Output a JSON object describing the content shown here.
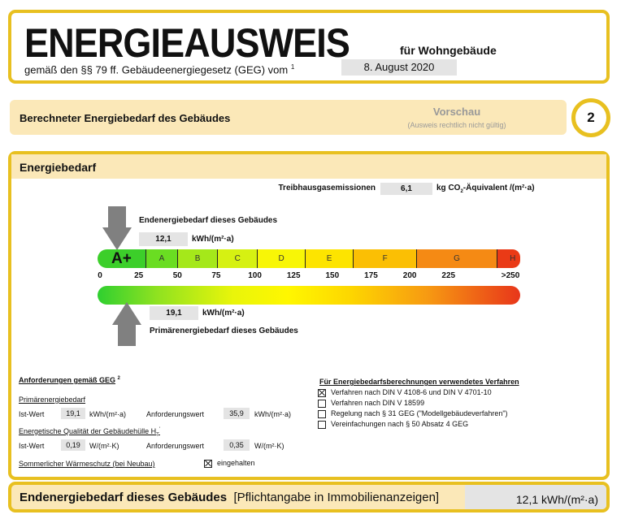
{
  "header": {
    "title": "ENERGIEAUSWEIS",
    "subtitle": "für Wohngebäude",
    "law_text": "gemäß den §§ 79 ff. Gebäudeenergiegesetz (GEG) vom",
    "law_footnote": "1",
    "date": "8. August 2020"
  },
  "section_bar": {
    "title": "Berechneter Energiebedarf des Gebäudes",
    "preview": "Vorschau",
    "preview_note": "(Ausweis rechtlich nicht gültig)",
    "page_number": "2"
  },
  "energy": {
    "title": "Energiebedarf",
    "ghg_label": "Treibhausgasemissionen",
    "ghg_value": "6,1",
    "ghg_unit_pre": "kg CO",
    "ghg_unit_sub": "2",
    "ghg_unit_post": "-Äquivalent /(m²·a)",
    "final_label": "Endenergiebedarf dieses Gebäudes",
    "final_value": "12,1",
    "final_unit": "kWh/(m²·a)",
    "primary_label": "Primärenergiebedarf dieses Gebäudes",
    "primary_value": "19,1",
    "primary_unit": "kWh/(m²·a)",
    "classes": [
      {
        "label": "A+",
        "color": "#3ccf2a"
      },
      {
        "label": "A",
        "color": "#6add22"
      },
      {
        "label": "B",
        "color": "#a5e81a"
      },
      {
        "label": "C",
        "color": "#d6f112"
      },
      {
        "label": "D",
        "color": "#f8f606"
      },
      {
        "label": "E",
        "color": "#fde400"
      },
      {
        "label": "F",
        "color": "#fbbf04"
      },
      {
        "label": "G",
        "color": "#f58a14"
      },
      {
        "label": "H",
        "color": "#ea3a16"
      }
    ],
    "ticks": [
      "0",
      "25",
      "50",
      "75",
      "100",
      "125",
      "150",
      "175",
      "200",
      "225",
      ">250"
    ]
  },
  "requirements": {
    "title": "Anforderungen gemäß GEG",
    "title_footnote": "2",
    "primary_title": "Primärenergiebedarf",
    "ist_label": "Ist-Wert",
    "primary_ist": "19,1",
    "primary_unit": "kWh/(m²·a)",
    "req_label": "Anforderungswert",
    "primary_req": "35,9",
    "hull_title": "Energetische Qualität der Gebäudehülle H",
    "hull_sub": "T",
    "hull_sup": "'",
    "hull_ist": "0,19",
    "hull_unit": "W/(m²·K)",
    "hull_req": "0,35",
    "summer_label": "Sommerlicher Wärmeschutz (bei Neubau)",
    "summer_value": "eingehalten",
    "summer_checked": true
  },
  "method": {
    "title": "Für Energiebedarfsberechnungen verwendetes Verfahren",
    "options": [
      {
        "label": "Verfahren nach DIN V 4108-6 und DIN V 4701-10",
        "checked": true
      },
      {
        "label": "Verfahren nach DIN V 18599",
        "checked": false
      },
      {
        "label": "Regelung nach § 31 GEG (\"Modellgebäudeverfahren\")",
        "checked": false
      },
      {
        "label": "Vereinfachungen nach § 50 Absatz 4 GEG",
        "checked": false
      }
    ]
  },
  "footer": {
    "label_bold": "Endenergiebedarf dieses Gebäudes",
    "label_note": "[Pflichtangabe in Immobilienanzeigen]",
    "value": "12,1 kWh/(m²·a)"
  },
  "colors": {
    "border": "#e8c020",
    "band": "#fbe8b8",
    "arrow": "#808080"
  }
}
